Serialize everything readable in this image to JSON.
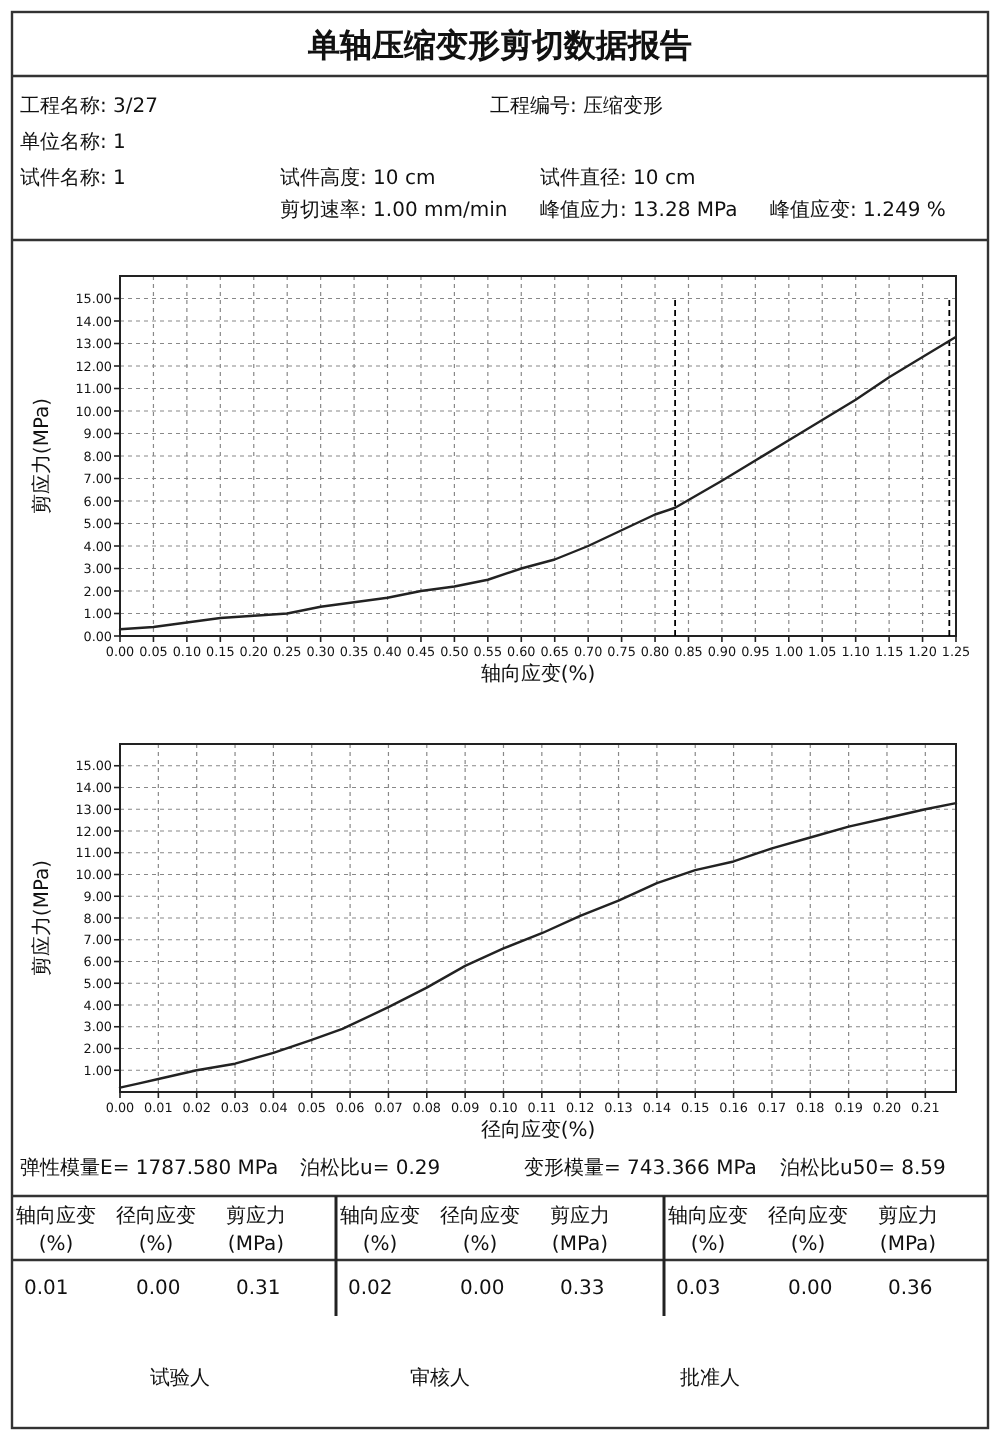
{
  "chart_data": [
    {
      "type": "other",
      "title": "单轴压缩变形剪切数据报告",
      "annotations": [
        "工程名称: 3/27",
        "工程编号: 压缩变形",
        "单位名称: 1",
        "试件名称: 1",
        "试件高度: 10 cm",
        "试件直径: 10 cm",
        "剪切速率: 1.00 mm/min",
        "峰值应力: 13.28 MPa",
        "峰值应变: 1.249 %"
      ]
    },
    {
      "type": "line",
      "xlabel": "轴向应变(%)",
      "ylabel": "剪应力(MPa)",
      "grid": true,
      "marker": "none",
      "line_style": "solid",
      "xlim": [
        0,
        1.25
      ],
      "ylim": [
        0,
        16
      ],
      "xticks": [
        {
          "value": 0,
          "label": "0.00"
        },
        {
          "value": 0.05,
          "label": "0.05"
        },
        {
          "value": 0.1,
          "label": "0.10"
        },
        {
          "value": 0.15,
          "label": "0.15"
        },
        {
          "value": 0.2,
          "label": "0.20"
        },
        {
          "value": 0.25,
          "label": "0.25"
        },
        {
          "value": 0.3,
          "label": "0.30"
        },
        {
          "value": 0.35,
          "label": "0.35"
        },
        {
          "value": 0.4,
          "label": "0.40"
        },
        {
          "value": 0.45,
          "label": "0.45"
        },
        {
          "value": 0.5,
          "label": "0.50"
        },
        {
          "value": 0.55,
          "label": "0.55"
        },
        {
          "value": 0.6,
          "label": "0.60"
        },
        {
          "value": 0.65,
          "label": "0.65"
        },
        {
          "value": 0.7,
          "label": "0.70"
        },
        {
          "value": 0.75,
          "label": "0.75"
        },
        {
          "value": 0.8,
          "label": "0.80"
        },
        {
          "value": 0.85,
          "label": "0.85"
        },
        {
          "value": 0.9,
          "label": "0.90"
        },
        {
          "value": 0.95,
          "label": "0.95"
        },
        {
          "value": 1,
          "label": "1.00"
        },
        {
          "value": 1.05,
          "label": "1.05"
        },
        {
          "value": 1.1,
          "label": "1.10"
        },
        {
          "value": 1.15,
          "label": "1.15"
        },
        {
          "value": 1.2,
          "label": "1.20"
        },
        {
          "value": 1.25,
          "label": "1.25"
        }
      ],
      "yticks": [
        {
          "value": 0,
          "label": "0.00"
        },
        {
          "value": 1,
          "label": "1.00"
        },
        {
          "value": 2,
          "label": "2.00"
        },
        {
          "value": 3,
          "label": "3.00"
        },
        {
          "value": 4,
          "label": "4.00"
        },
        {
          "value": 5,
          "label": "5.00"
        },
        {
          "value": 6,
          "label": "6.00"
        },
        {
          "value": 7,
          "label": "7.00"
        },
        {
          "value": 8,
          "label": "8.00"
        },
        {
          "value": 9,
          "label": "9.00"
        },
        {
          "value": 10,
          "label": "10.00"
        },
        {
          "value": 11,
          "label": "11.00"
        },
        {
          "value": 12,
          "label": "12.00"
        },
        {
          "value": 13,
          "label": "13.00"
        },
        {
          "value": 14,
          "label": "14.00"
        },
        {
          "value": 15,
          "label": "15.00"
        }
      ],
      "ref_lines": [
        {
          "axis": "x",
          "value": 0.83,
          "color": "#000000",
          "line_style": "dashed"
        },
        {
          "axis": "x",
          "value": 1.24,
          "color": "#000000",
          "line_style": "dashed"
        }
      ],
      "series": [
        {
          "color": "#222222",
          "x": [
            0,
            0.05,
            0.1,
            0.15,
            0.2,
            0.25,
            0.3,
            0.35,
            0.4,
            0.45,
            0.5,
            0.55,
            0.6,
            0.65,
            0.7,
            0.75,
            0.8,
            0.83,
            0.9,
            0.95,
            1.0,
            1.05,
            1.1,
            1.15,
            1.2,
            1.249
          ],
          "values": [
            0.3,
            0.4,
            0.6,
            0.8,
            0.9,
            1.0,
            1.3,
            1.5,
            1.7,
            2.0,
            2.2,
            2.5,
            3.0,
            3.4,
            4.0,
            4.7,
            5.4,
            5.7,
            6.9,
            7.8,
            8.7,
            9.6,
            10.5,
            11.5,
            12.4,
            13.28
          ]
        }
      ]
    },
    {
      "type": "line",
      "xlabel": "径向应变(%)",
      "ylabel": "剪应力(MPa)",
      "grid": true,
      "marker": "none",
      "line_style": "solid",
      "xlim": [
        0,
        0.218
      ],
      "ylim": [
        0,
        16
      ],
      "xticks": [
        {
          "value": 0,
          "label": "0.00"
        },
        {
          "value": 0.01,
          "label": "0.01"
        },
        {
          "value": 0.02,
          "label": "0.02"
        },
        {
          "value": 0.03,
          "label": "0.03"
        },
        {
          "value": 0.04,
          "label": "0.04"
        },
        {
          "value": 0.05,
          "label": "0.05"
        },
        {
          "value": 0.06,
          "label": "0.06"
        },
        {
          "value": 0.07,
          "label": "0.07"
        },
        {
          "value": 0.08,
          "label": "0.08"
        },
        {
          "value": 0.09,
          "label": "0.09"
        },
        {
          "value": 0.1,
          "label": "0.10"
        },
        {
          "value": 0.11,
          "label": "0.11"
        },
        {
          "value": 0.12,
          "label": "0.12"
        },
        {
          "value": 0.13,
          "label": "0.13"
        },
        {
          "value": 0.14,
          "label": "0.14"
        },
        {
          "value": 0.15,
          "label": "0.15"
        },
        {
          "value": 0.16,
          "label": "0.16"
        },
        {
          "value": 0.17,
          "label": "0.17"
        },
        {
          "value": 0.18,
          "label": "0.18"
        },
        {
          "value": 0.19,
          "label": "0.19"
        },
        {
          "value": 0.2,
          "label": "0.20"
        },
        {
          "value": 0.21,
          "label": "0.21"
        }
      ],
      "yticks": [
        {
          "value": 1,
          "label": "1.00"
        },
        {
          "value": 2,
          "label": "2.00"
        },
        {
          "value": 3,
          "label": "3.00"
        },
        {
          "value": 4,
          "label": "4.00"
        },
        {
          "value": 5,
          "label": "5.00"
        },
        {
          "value": 6,
          "label": "6.00"
        },
        {
          "value": 7,
          "label": "7.00"
        },
        {
          "value": 8,
          "label": "8.00"
        },
        {
          "value": 9,
          "label": "9.00"
        },
        {
          "value": 10,
          "label": "10.00"
        },
        {
          "value": 11,
          "label": "11.00"
        },
        {
          "value": 12,
          "label": "12.00"
        },
        {
          "value": 13,
          "label": "13.00"
        },
        {
          "value": 14,
          "label": "14.00"
        },
        {
          "value": 15,
          "label": "15.00"
        }
      ],
      "series": [
        {
          "color": "#222222",
          "x": [
            0,
            0.005,
            0.01,
            0.02,
            0.03,
            0.04,
            0.05,
            0.058,
            0.07,
            0.08,
            0.09,
            0.1,
            0.11,
            0.12,
            0.13,
            0.14,
            0.15,
            0.16,
            0.17,
            0.18,
            0.19,
            0.2,
            0.21,
            0.218
          ],
          "values": [
            0.2,
            0.4,
            0.6,
            1.0,
            1.3,
            1.8,
            2.4,
            2.9,
            3.9,
            4.8,
            5.8,
            6.6,
            7.3,
            8.1,
            8.8,
            9.6,
            10.2,
            10.6,
            11.2,
            11.7,
            12.2,
            12.6,
            13.0,
            13.28
          ]
        }
      ]
    },
    {
      "type": "other",
      "annotations": [
        "弹性模量E= 1787.580 MPa",
        "泊松比u= 0.29",
        "变形模量= 743.366 MPa",
        "泊松比u50= 8.59",
        "轴向应变",
        "(%)",
        "径向应变",
        "(%)",
        "剪应力",
        "(MPa)",
        "0.01",
        "0.00",
        "0.31",
        "轴向应变",
        "(%)",
        "径向应变",
        "(%)",
        "剪应力",
        "(MPa)",
        "0.02",
        "0.00",
        "0.33",
        "轴向应变",
        "(%)",
        "径向应变",
        "(%)",
        "剪应力",
        "(MPa)",
        "0.03",
        "0.00",
        "0.36",
        "试验人",
        "审核人",
        "批准人"
      ]
    }
  ]
}
